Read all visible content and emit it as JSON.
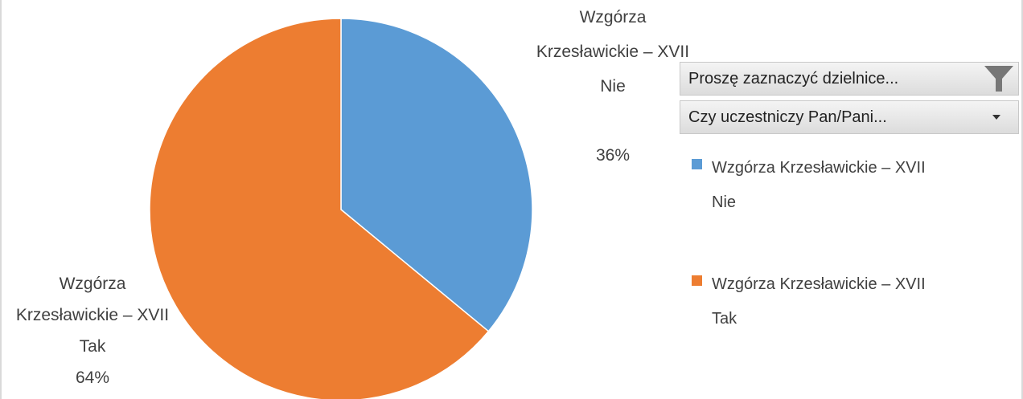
{
  "chart_data": {
    "type": "pie",
    "categories": [
      "Wzgórza Krzesławickie – XVII Nie",
      "Wzgórza Krzesławickie – XVII Tak"
    ],
    "values": [
      36,
      64
    ],
    "value_labels": [
      "36%",
      "64%"
    ],
    "colors": [
      "#5b9bd5",
      "#ed7d31"
    ]
  },
  "filters": [
    "Proszę zaznaczyć dzielnice...",
    "Czy uczestniczy Pan/Pani..."
  ]
}
